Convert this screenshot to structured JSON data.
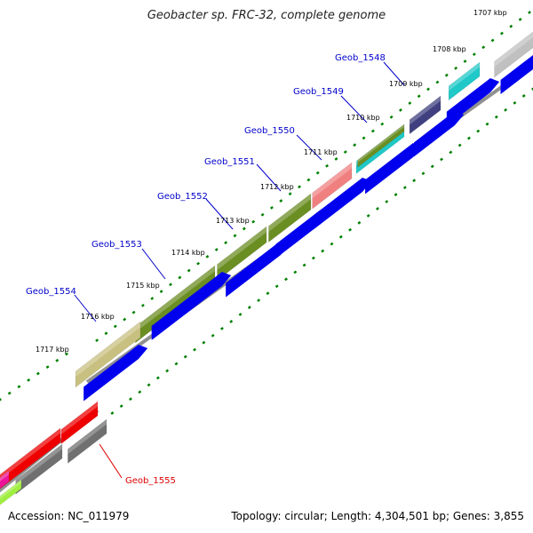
{
  "title": "Geobacter sp. FRC-32, complete genome",
  "accession": "Accession: NC_011979",
  "summary": "Topology: circular; Length: 4,304,501 bp; Genes: 3,855",
  "colors": {
    "blue": "#0000ee",
    "olive": "#6b8e23",
    "khaki": "#c8c080",
    "salmon": "#f08080",
    "cyan": "#20c8c8",
    "navy": "#404080",
    "silver": "#c0c0c0",
    "red": "#ee0000",
    "gray": "#707070",
    "magenta": "#ee1499",
    "lime": "#a0ee40",
    "backbone": "#909090",
    "tick": "#008000",
    "label_blue": "#0000cc",
    "label_red": "#dd0000"
  },
  "kbp_ticks": [
    "1707 kbp",
    "1708 kbp",
    "1709 kbp",
    "1710 kbp",
    "1711 kbp",
    "1712 kbp",
    "1713 kbp",
    "1714 kbp",
    "1715 kbp",
    "1716 kbp",
    "1717 kbp"
  ],
  "gene_labels": [
    {
      "text": "Geob_1548",
      "color": "label_blue"
    },
    {
      "text": "Geob_1549",
      "color": "label_blue"
    },
    {
      "text": "Geob_1550",
      "color": "label_blue"
    },
    {
      "text": "Geob_1551",
      "color": "label_blue"
    },
    {
      "text": "Geob_1552",
      "color": "label_blue"
    },
    {
      "text": "Geob_1553",
      "color": "label_blue"
    },
    {
      "text": "Geob_1554",
      "color": "label_blue"
    },
    {
      "text": "Geob_1555",
      "color": "label_red"
    }
  ]
}
